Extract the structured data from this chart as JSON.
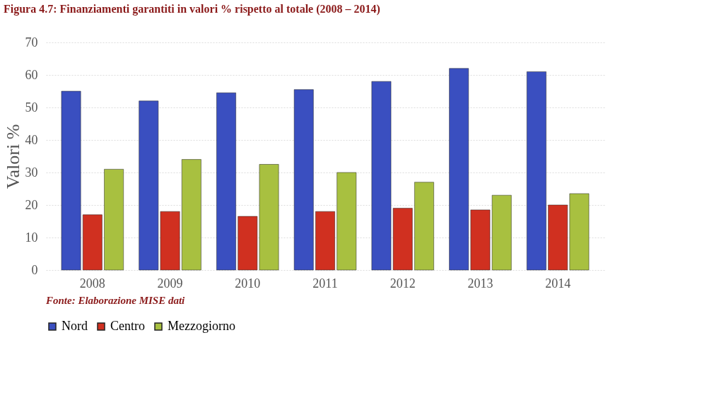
{
  "chart_data": {
    "type": "bar",
    "title": "Figura 4.7: Finanziamenti garantiti in valori % rispetto al totale (2008 – 2014)",
    "ylabel": "Valori %",
    "categories": [
      "2008",
      "2009",
      "2010",
      "2011",
      "2012",
      "2013",
      "2014"
    ],
    "series": [
      {
        "name": "Nord",
        "color": "#3a4fc0",
        "values": [
          55,
          52,
          54.5,
          55.5,
          58,
          62,
          61
        ]
      },
      {
        "name": "Centro",
        "color": "#d03020",
        "values": [
          17,
          18,
          16.5,
          18,
          19,
          18.5,
          20
        ]
      },
      {
        "name": "Mezzogiorno",
        "color": "#a8c040",
        "values": [
          31,
          34,
          32.5,
          30,
          27,
          23,
          23.5
        ]
      }
    ],
    "ylim": [
      0,
      70
    ],
    "yticks": [
      0,
      10,
      20,
      30,
      40,
      50,
      60,
      70
    ],
    "grid": "y",
    "legend": "bottom",
    "annotations": [
      "Fonte: Elaborazione MISE dati"
    ]
  }
}
